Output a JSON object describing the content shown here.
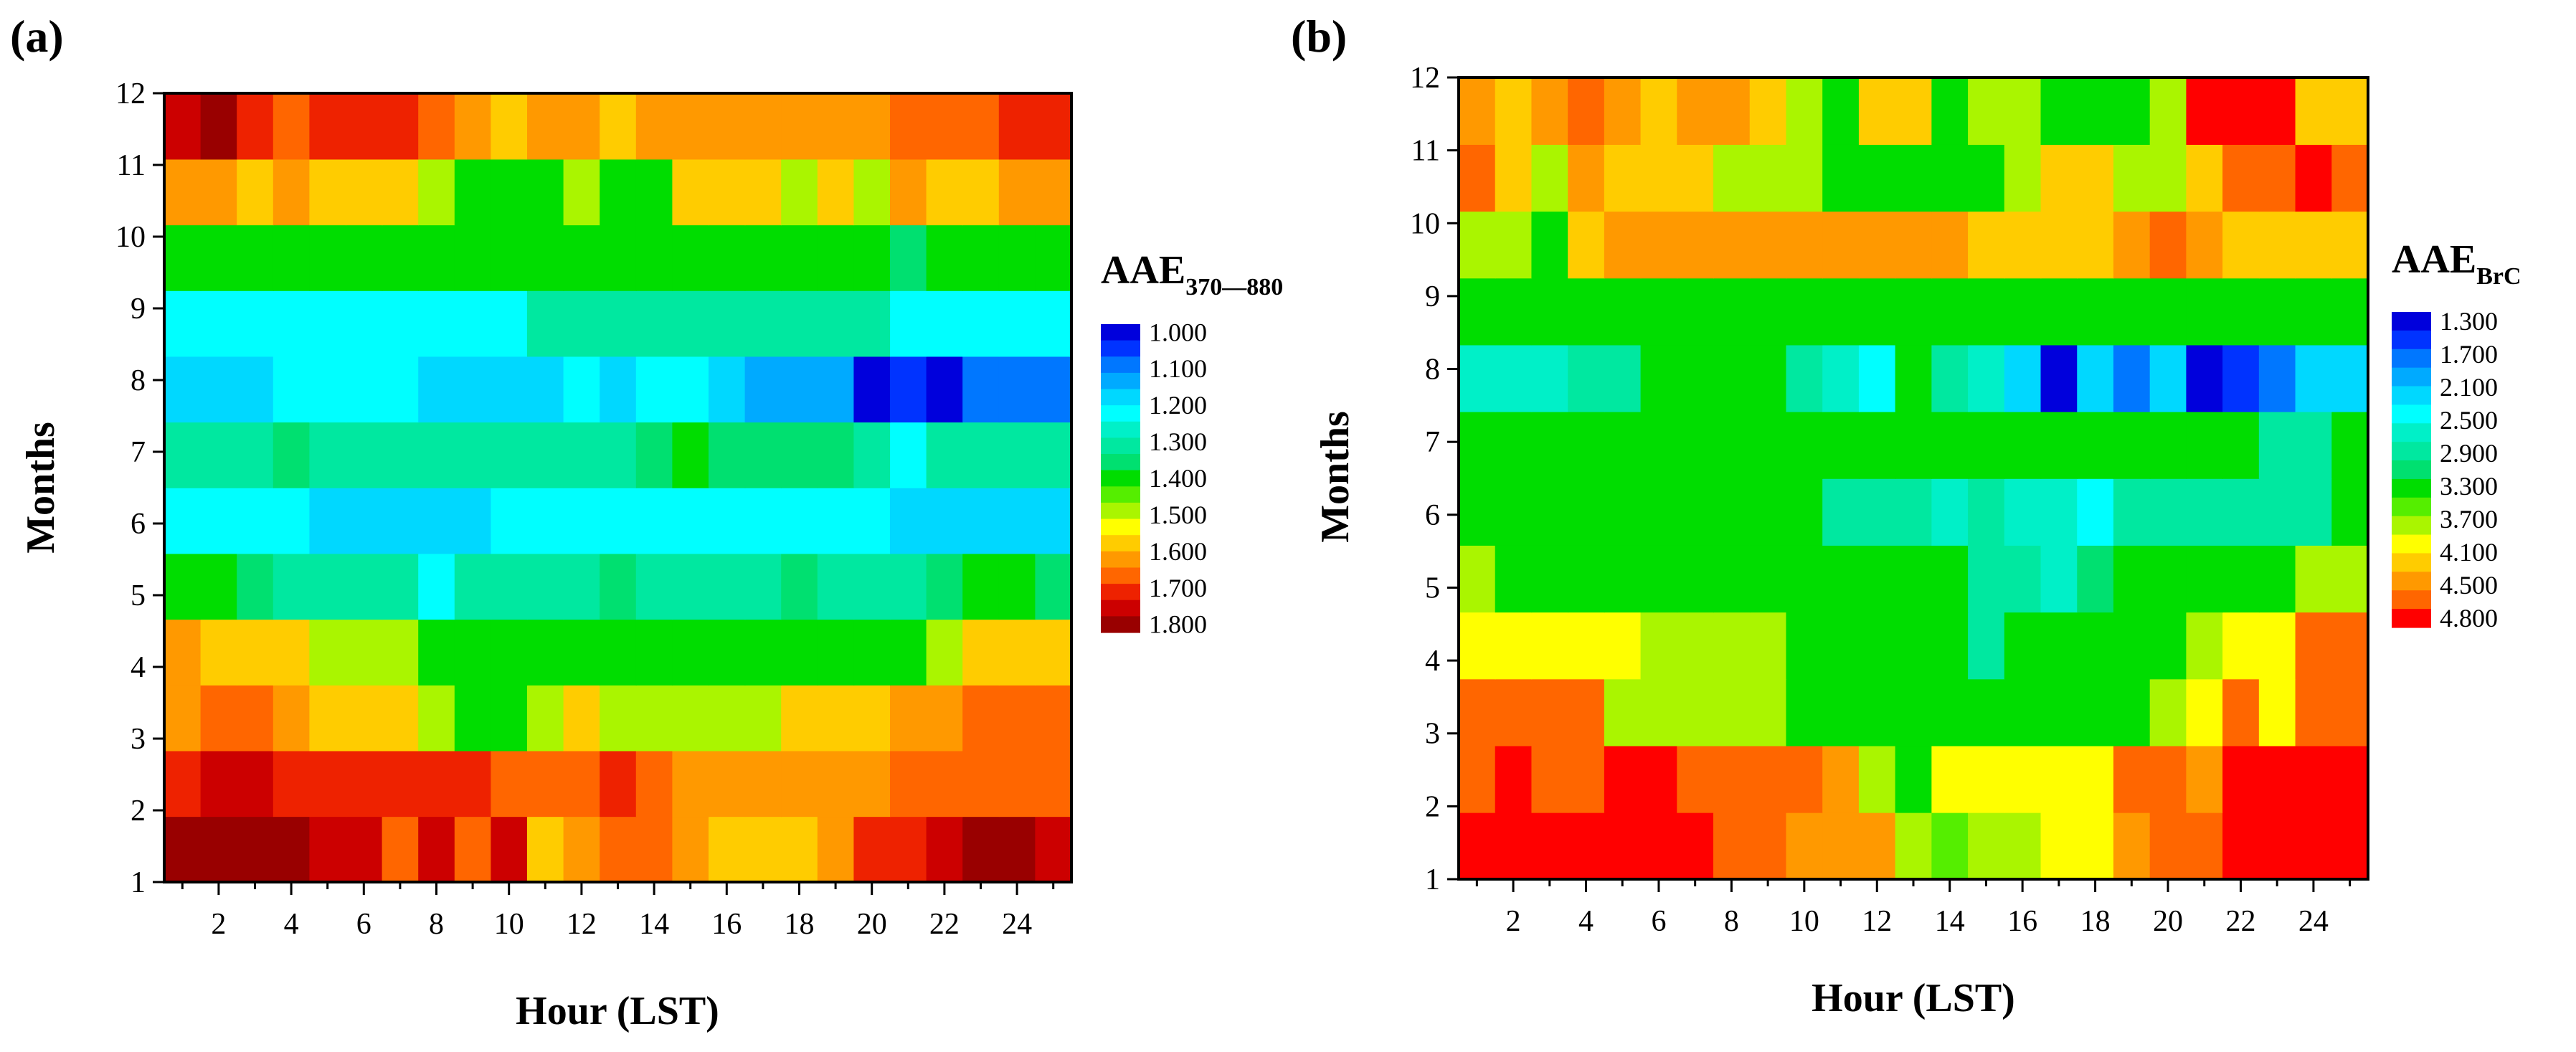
{
  "chart_data": [
    {
      "panel": "(a)",
      "type": "heatmap",
      "xlabel": "Hour (LST)",
      "ylabel": "Months",
      "x_ticks": [
        "2",
        "4",
        "6",
        "8",
        "10",
        "12",
        "14",
        "16",
        "18",
        "20",
        "22",
        "24"
      ],
      "y_ticks": [
        "1",
        "2",
        "3",
        "4",
        "5",
        "6",
        "7",
        "8",
        "9",
        "10",
        "11",
        "12"
      ],
      "colorbar": {
        "title": "AAE",
        "subscript": "370—880",
        "labels": [
          "1.000",
          "1.100",
          "1.200",
          "1.300",
          "1.400",
          "1.500",
          "1.600",
          "1.700",
          "1.800"
        ],
        "colors": [
          "#0000dc",
          "#0033ff",
          "#0077ff",
          "#00aaff",
          "#00d8ff",
          "#00ffff",
          "#00f0c8",
          "#00e8a0",
          "#00e070",
          "#00dd00",
          "#55ee00",
          "#aaf500",
          "#ffff00",
          "#ffcc00",
          "#ff9900",
          "#ff6600",
          "#ee2200",
          "#cc0000",
          "#990000"
        ],
        "range": [
          1.0,
          1.8
        ]
      },
      "months": [
        [
          1.78,
          1.78,
          1.78,
          1.78,
          1.72,
          1.72,
          1.67,
          1.72,
          1.67,
          1.72,
          1.58,
          1.62,
          1.65,
          1.65,
          1.6,
          1.55,
          1.55,
          1.55,
          1.6,
          1.68,
          1.68,
          1.72,
          1.78,
          1.78,
          1.72
        ],
        [
          1.7,
          1.72,
          1.72,
          1.7,
          1.7,
          1.7,
          1.7,
          1.7,
          1.7,
          1.65,
          1.65,
          1.65,
          1.7,
          1.65,
          1.6,
          1.6,
          1.6,
          1.6,
          1.6,
          1.6,
          1.65,
          1.65,
          1.65,
          1.65,
          1.65
        ],
        [
          1.6,
          1.65,
          1.65,
          1.6,
          1.55,
          1.55,
          1.55,
          1.5,
          1.42,
          1.42,
          1.5,
          1.55,
          1.5,
          1.5,
          1.5,
          1.5,
          1.5,
          1.55,
          1.55,
          1.55,
          1.6,
          1.6,
          1.65,
          1.65,
          1.65
        ],
        [
          1.6,
          1.55,
          1.55,
          1.55,
          1.5,
          1.5,
          1.5,
          1.42,
          1.42,
          1.42,
          1.42,
          1.42,
          1.42,
          1.42,
          1.42,
          1.42,
          1.42,
          1.42,
          1.42,
          1.42,
          1.42,
          1.5,
          1.55,
          1.55,
          1.55
        ],
        [
          1.38,
          1.42,
          1.35,
          1.3,
          1.3,
          1.3,
          1.3,
          1.25,
          1.3,
          1.3,
          1.3,
          1.3,
          1.35,
          1.3,
          1.3,
          1.3,
          1.3,
          1.35,
          1.3,
          1.3,
          1.3,
          1.35,
          1.42,
          1.42,
          1.35
        ],
        [
          1.25,
          1.25,
          1.25,
          1.25,
          1.2,
          1.2,
          1.2,
          1.2,
          1.2,
          1.25,
          1.25,
          1.25,
          1.25,
          1.25,
          1.25,
          1.25,
          1.25,
          1.25,
          1.25,
          1.25,
          1.2,
          1.2,
          1.2,
          1.2,
          1.2
        ],
        [
          1.3,
          1.3,
          1.3,
          1.35,
          1.3,
          1.3,
          1.3,
          1.3,
          1.3,
          1.3,
          1.3,
          1.3,
          1.3,
          1.35,
          1.42,
          1.35,
          1.35,
          1.35,
          1.35,
          1.3,
          1.25,
          1.3,
          1.3,
          1.3,
          1.3
        ],
        [
          1.2,
          1.2,
          1.2,
          1.25,
          1.25,
          1.25,
          1.25,
          1.2,
          1.2,
          1.2,
          1.2,
          1.25,
          1.2,
          1.25,
          1.25,
          1.2,
          1.15,
          1.15,
          1.15,
          1.02,
          1.08,
          1.0,
          1.12,
          1.12,
          1.12
        ],
        [
          1.25,
          1.25,
          1.25,
          1.25,
          1.25,
          1.25,
          1.25,
          1.25,
          1.25,
          1.25,
          1.3,
          1.3,
          1.3,
          1.3,
          1.32,
          1.32,
          1.32,
          1.3,
          1.3,
          1.3,
          1.25,
          1.25,
          1.25,
          1.25,
          1.25
        ],
        [
          1.42,
          1.42,
          1.42,
          1.42,
          1.42,
          1.42,
          1.42,
          1.42,
          1.42,
          1.4,
          1.42,
          1.42,
          1.42,
          1.42,
          1.42,
          1.42,
          1.42,
          1.4,
          1.4,
          1.4,
          1.35,
          1.42,
          1.42,
          1.42,
          1.42
        ],
        [
          1.6,
          1.6,
          1.55,
          1.6,
          1.55,
          1.55,
          1.55,
          1.5,
          1.42,
          1.42,
          1.42,
          1.5,
          1.42,
          1.42,
          1.55,
          1.55,
          1.55,
          1.5,
          1.55,
          1.48,
          1.6,
          1.55,
          1.55,
          1.6,
          1.6
        ],
        [
          1.72,
          1.78,
          1.7,
          1.67,
          1.7,
          1.7,
          1.7,
          1.65,
          1.62,
          1.58,
          1.6,
          1.62,
          1.58,
          1.6,
          1.6,
          1.6,
          1.6,
          1.6,
          1.6,
          1.6,
          1.65,
          1.65,
          1.65,
          1.7,
          1.7
        ]
      ]
    },
    {
      "panel": "(b)",
      "type": "heatmap",
      "xlabel": "Hour (LST)",
      "ylabel": "Months",
      "x_ticks": [
        "2",
        "4",
        "6",
        "8",
        "10",
        "12",
        "14",
        "16",
        "18",
        "20",
        "22",
        "24"
      ],
      "y_ticks": [
        "1",
        "2",
        "3",
        "4",
        "5",
        "6",
        "7",
        "8",
        "9",
        "10",
        "11",
        "12"
      ],
      "colorbar": {
        "title": "AAE",
        "subscript": "BrC",
        "labels": [
          "1.300",
          "1.700",
          "2.100",
          "2.500",
          "2.900",
          "3.300",
          "3.700",
          "4.100",
          "4.500",
          "4.800"
        ],
        "colors": [
          "#0000dc",
          "#0033ff",
          "#0077ff",
          "#00aaff",
          "#00d8ff",
          "#00ffff",
          "#00f0c8",
          "#00e8a0",
          "#00e070",
          "#00dd00",
          "#55ee00",
          "#aaf500",
          "#ffff00",
          "#ffcc00",
          "#ff9900",
          "#ff6600",
          "#ff0000"
        ],
        "range": [
          1.3,
          4.8
        ]
      },
      "months": [
        [
          4.8,
          4.6,
          4.6,
          4.6,
          4.6,
          4.6,
          4.6,
          4.5,
          4.5,
          4.3,
          4.3,
          4.3,
          3.7,
          3.4,
          3.7,
          3.7,
          3.9,
          3.9,
          4.3,
          4.5,
          4.5,
          4.6,
          4.6,
          4.8,
          4.6
        ],
        [
          4.5,
          4.6,
          4.5,
          4.5,
          4.6,
          4.6,
          4.4,
          4.4,
          4.4,
          4.4,
          4.3,
          3.7,
          3.3,
          3.9,
          3.9,
          3.9,
          3.9,
          3.9,
          4.5,
          4.4,
          4.3,
          4.6,
          4.6,
          4.6,
          4.6
        ],
        [
          4.4,
          4.5,
          4.4,
          4.4,
          3.7,
          3.7,
          3.7,
          3.7,
          3.7,
          3.3,
          3.3,
          3.3,
          3.3,
          3.3,
          3.3,
          3.3,
          3.3,
          3.3,
          3.3,
          3.7,
          3.9,
          4.4,
          3.9,
          4.4,
          4.4
        ],
        [
          3.9,
          3.9,
          3.9,
          3.9,
          3.9,
          3.7,
          3.7,
          3.7,
          3.7,
          3.3,
          3.3,
          3.3,
          3.3,
          3.3,
          2.9,
          3.3,
          3.3,
          3.3,
          3.3,
          3.3,
          3.7,
          3.9,
          3.9,
          4.4,
          4.4
        ],
        [
          3.7,
          3.3,
          3.3,
          3.3,
          3.3,
          3.3,
          3.3,
          3.3,
          3.3,
          3.3,
          3.3,
          3.3,
          3.3,
          3.3,
          2.9,
          2.9,
          2.7,
          3.1,
          3.3,
          3.3,
          3.3,
          3.3,
          3.3,
          3.7,
          3.7
        ],
        [
          3.3,
          3.3,
          3.3,
          3.3,
          3.3,
          3.3,
          3.3,
          3.3,
          3.3,
          3.3,
          2.9,
          2.9,
          2.9,
          2.7,
          2.9,
          2.7,
          2.7,
          2.5,
          2.9,
          2.9,
          2.9,
          2.9,
          2.9,
          2.9,
          3.3
        ],
        [
          3.3,
          3.3,
          3.3,
          3.3,
          3.3,
          3.3,
          3.3,
          3.3,
          3.3,
          3.3,
          3.3,
          3.3,
          3.3,
          3.3,
          3.3,
          3.3,
          3.3,
          3.3,
          3.3,
          3.3,
          3.3,
          3.3,
          2.9,
          2.9,
          3.3
        ],
        [
          2.7,
          2.7,
          2.7,
          2.9,
          2.9,
          3.3,
          3.3,
          3.3,
          3.3,
          2.9,
          2.7,
          2.5,
          3.3,
          2.9,
          2.7,
          2.3,
          1.5,
          2.3,
          1.9,
          2.3,
          1.3,
          1.6,
          1.9,
          2.3,
          2.3
        ],
        [
          3.3,
          3.3,
          3.3,
          3.3,
          3.3,
          3.3,
          3.3,
          3.3,
          3.3,
          3.3,
          3.3,
          3.3,
          3.3,
          3.3,
          3.3,
          3.3,
          3.3,
          3.3,
          3.3,
          3.3,
          3.3,
          3.3,
          3.3,
          3.3,
          3.3
        ],
        [
          3.7,
          3.7,
          3.3,
          4.0,
          4.2,
          4.2,
          4.2,
          4.2,
          4.2,
          4.2,
          4.2,
          4.2,
          4.2,
          4.2,
          4.0,
          4.0,
          4.0,
          4.0,
          4.2,
          4.4,
          4.2,
          4.0,
          4.0,
          4.0,
          4.0
        ],
        [
          4.4,
          4.0,
          3.7,
          4.2,
          4.0,
          4.0,
          4.0,
          3.7,
          3.7,
          3.7,
          3.3,
          3.3,
          3.3,
          3.3,
          3.3,
          3.7,
          4.0,
          4.0,
          3.7,
          3.7,
          4.0,
          4.4,
          4.4,
          4.6,
          4.4
        ],
        [
          4.2,
          4.0,
          4.2,
          4.4,
          4.2,
          4.0,
          4.2,
          4.2,
          4.0,
          3.7,
          3.3,
          4.0,
          4.0,
          3.3,
          3.7,
          3.7,
          3.3,
          3.3,
          3.3,
          3.7,
          4.6,
          4.6,
          4.6,
          4.0,
          4.0
        ]
      ]
    }
  ]
}
